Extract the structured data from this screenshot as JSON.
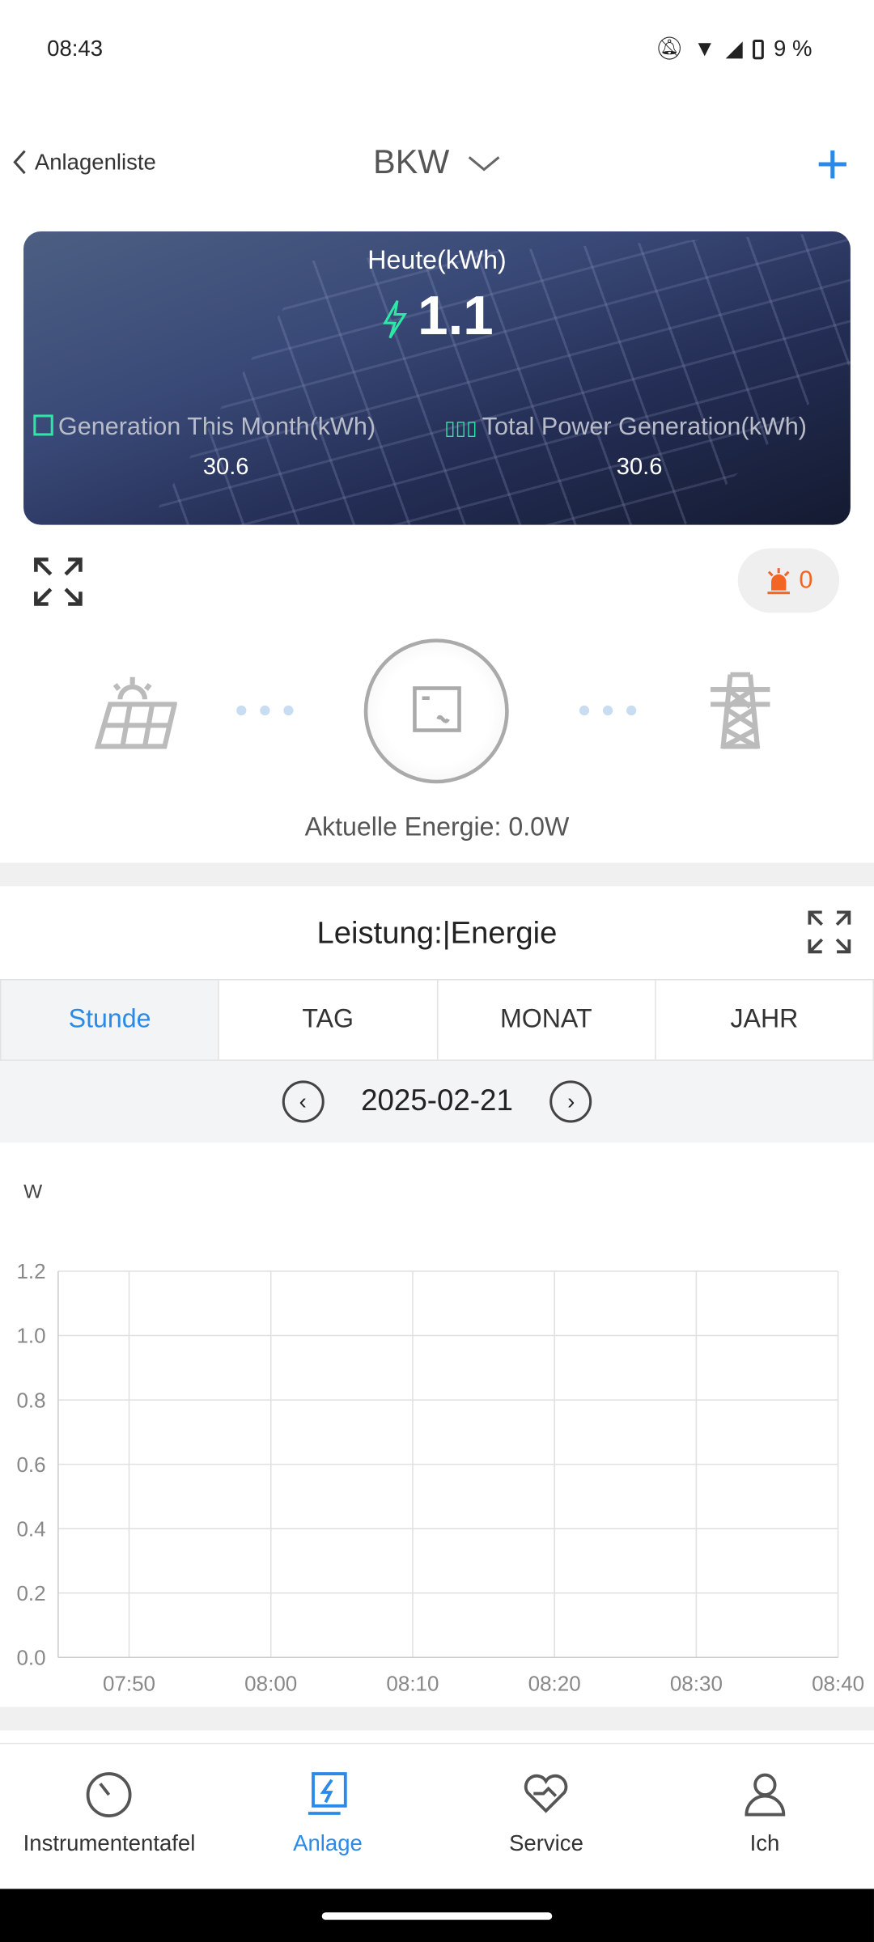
{
  "status_bar": {
    "time": "08:43",
    "battery": "9 %"
  },
  "header": {
    "back_label": "Anlagenliste",
    "title": "BKW"
  },
  "banner": {
    "today_label": "Heute(kWh)",
    "today_value": "1.1",
    "month_label": "Generation This Month(kWh)",
    "month_value": "30.6",
    "total_label": "Total Power Generation(kWh)",
    "total_value": "30.6"
  },
  "alarm": {
    "count": "0"
  },
  "flow": {
    "energy_label": "Aktuelle Energie:",
    "energy_value": "0.0W"
  },
  "chart_section": {
    "title": "Leistung:|Energie",
    "tabs": [
      {
        "label": "Stunde",
        "active": true
      },
      {
        "label": "TAG"
      },
      {
        "label": "MONAT"
      },
      {
        "label": "JAHR"
      }
    ],
    "date": "2025-02-21"
  },
  "chart_data": {
    "type": "line",
    "ylabel": "W",
    "ylim": [
      0,
      1.2
    ],
    "yticks": [
      "0.0",
      "0.2",
      "0.4",
      "0.6",
      "0.8",
      "1.0",
      "1.2"
    ],
    "xticks": [
      "07:50",
      "08:00",
      "08:10",
      "08:20",
      "08:30",
      "08:40"
    ],
    "series": [],
    "grid": true
  },
  "bottom_nav": [
    {
      "label": "Instrumententafel"
    },
    {
      "label": "Anlage",
      "active": true
    },
    {
      "label": "Service"
    },
    {
      "label": "Ich"
    }
  ],
  "colors": {
    "accent": "#2b8ae8",
    "alarm": "#f26522",
    "highlight": "#2ee6a6"
  }
}
